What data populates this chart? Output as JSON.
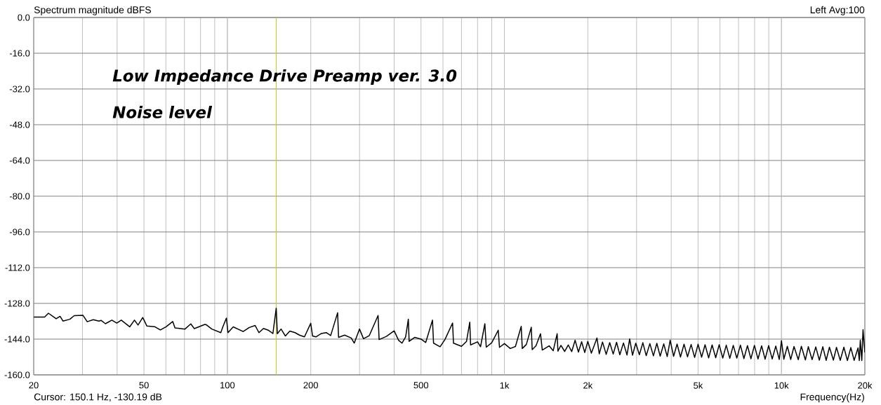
{
  "chart_data": {
    "type": "line",
    "title": "Low Impedance Drive Preamp ver. 3.0",
    "subtitle": "Noise level",
    "xlabel": "Frequency(Hz)",
    "ylabel": "Spectrum magnitude dBFS",
    "annotations": [
      "Left Avg:100",
      "Cursor: 150.1 Hz, -130.19 dB"
    ],
    "log": "x",
    "grid": true,
    "line_style": "solid",
    "xlim": [
      20,
      20000
    ],
    "ylim": [
      -160,
      0
    ],
    "xticks": [
      20,
      {
        "value": 30,
        "label": null
      },
      {
        "value": 40,
        "label": null
      },
      50,
      {
        "value": 60,
        "label": null
      },
      {
        "value": 70,
        "label": null
      },
      {
        "value": 80,
        "label": null
      },
      {
        "value": 90,
        "label": null
      },
      100,
      200,
      {
        "value": 300,
        "label": null
      },
      {
        "value": 400,
        "label": null
      },
      500,
      {
        "value": 600,
        "label": null
      },
      {
        "value": 700,
        "label": null
      },
      {
        "value": 800,
        "label": null
      },
      {
        "value": 900,
        "label": null
      },
      {
        "value": 1000,
        "label": "1k"
      },
      {
        "value": 2000,
        "label": "2k"
      },
      {
        "value": 3000,
        "label": null
      },
      {
        "value": 4000,
        "label": null
      },
      {
        "value": 5000,
        "label": "5k"
      },
      {
        "value": 6000,
        "label": null
      },
      {
        "value": 7000,
        "label": null
      },
      {
        "value": 8000,
        "label": null
      },
      {
        "value": 9000,
        "label": null
      },
      {
        "value": 10000,
        "label": "10k"
      },
      {
        "value": 20000,
        "label": "20k"
      }
    ],
    "yticks": [
      {
        "value": 0,
        "label": "0.0"
      },
      {
        "value": -16,
        "label": "-16.0"
      },
      {
        "value": -32,
        "label": "-32.0"
      },
      {
        "value": -48,
        "label": "-48.0"
      },
      {
        "value": -64,
        "label": "-64.0"
      },
      {
        "value": -80,
        "label": "-80.0"
      },
      {
        "value": -96,
        "label": "-96.0"
      },
      {
        "value": -112,
        "label": "-112.0"
      },
      {
        "value": -128,
        "label": "-128.0"
      },
      {
        "value": -144,
        "label": "-144.0"
      },
      {
        "value": -160,
        "label": "-160.0"
      }
    ],
    "ref_lines": [
      {
        "axis": "x",
        "value": 150.1,
        "color": "#c8c83c"
      }
    ],
    "x": [
      20,
      21.9,
      22.6,
      24.1,
      24.9,
      25.5,
      27,
      28,
      30.1,
      31.2,
      32.8,
      34.4,
      35,
      36.3,
      38.3,
      39.9,
      41.4,
      44.4,
      46.2,
      47.6,
      49.5,
      51.2,
      54.6,
      57.3,
      60.1,
      63.5,
      64.7,
      70.3,
      73.8,
      76,
      82.9,
      84,
      87.9,
      94.7,
      96.3,
      99.2,
      100.5,
      105,
      114,
      120,
      126,
      130,
      135,
      141,
      146,
      150.1,
      151.5,
      156.3,
      162,
      168,
      175.6,
      182,
      189.8,
      200,
      203,
      208.7,
      218,
      227.6,
      236,
      250,
      252,
      265,
      280,
      287,
      300,
      310,
      325,
      350,
      353,
      375,
      400,
      415,
      427,
      440,
      450,
      453,
      475,
      500,
      520,
      550,
      555,
      586,
      610,
      650,
      655,
      700,
      730,
      750,
      755,
      800,
      820,
      850,
      860,
      900,
      950,
      960,
      1000,
      1050,
      1096,
      1150,
      1160,
      1200,
      1250,
      1260,
      1300,
      1350,
      1370,
      1450,
      1500,
      1550,
      1560,
      1600,
      1650,
      1700,
      1750,
      1800,
      1850,
      1900,
      1950,
      2000,
      2060,
      2158,
      2200,
      2260,
      2330,
      2400,
      2470,
      2540,
      2610,
      2690,
      2770,
      2832,
      2900,
      2980,
      3070,
      3160,
      3250,
      3350,
      3450,
      3550,
      3650,
      3760,
      3870,
      3966,
      4080,
      4200,
      4320,
      4450,
      4580,
      4720,
      4860,
      5000,
      5150,
      5300,
      5460,
      5620,
      5790,
      5960,
      6140,
      6320,
      6510,
      6700,
      6900,
      7110,
      7320,
      7540,
      7760,
      7990,
      8230,
      8480,
      8730,
      8990,
      9260,
      9540,
      9820,
      10000,
      10200,
      10500,
      10800,
      11100,
      11500,
      11800,
      12200,
      12500,
      12900,
      13300,
      13700,
      14100,
      14500,
      14900,
      15400,
      15800,
      16300,
      16800,
      17300,
      17800,
      18300,
      18900,
      19100,
      19260,
      19500,
      19700,
      20000
    ],
    "series": [
      {
        "color": "#000000",
        "values": [
          -134.1,
          -134.1,
          -132.4,
          -134.9,
          -133.8,
          -135.9,
          -135.1,
          -133.5,
          -133.3,
          -136.2,
          -135.3,
          -135.9,
          -135.6,
          -137.1,
          -135.5,
          -136.8,
          -135.5,
          -138.5,
          -135.5,
          -137.7,
          -134.3,
          -138.1,
          -138.4,
          -139.9,
          -138.5,
          -136.1,
          -139,
          -139.5,
          -137.2,
          -139.3,
          -137.4,
          -137.6,
          -139.5,
          -141.1,
          -138.5,
          -134.6,
          -141.1,
          -138.5,
          -140.6,
          -138.8,
          -137.9,
          -141.1,
          -139.2,
          -140.1,
          -141.5,
          -130.19,
          -141.6,
          -139.5,
          -142.6,
          -140.4,
          -141.1,
          -142.2,
          -143,
          -136.9,
          -142.6,
          -143,
          -141.5,
          -141.1,
          -142.4,
          -132.2,
          -143.2,
          -142.2,
          -143.5,
          -145.8,
          -139.5,
          -143.8,
          -142.5,
          -133.4,
          -144.2,
          -142.8,
          -140.3,
          -144.5,
          -145.8,
          -143,
          -135.1,
          -145,
          -143.2,
          -144,
          -145.5,
          -135.5,
          -145.8,
          -147.4,
          -144.2,
          -136.8,
          -145.8,
          -147.2,
          -145,
          -136.4,
          -146.6,
          -145.2,
          -147.4,
          -137.1,
          -147.6,
          -145.6,
          -140,
          -147.7,
          -146,
          -148.2,
          -147.3,
          -138.3,
          -148.2,
          -146.4,
          -138.7,
          -148.7,
          -147,
          -141.6,
          -148.9,
          -147,
          -149.2,
          -141.6,
          -149.4,
          -146.8,
          -149.5,
          -146.6,
          -149.6,
          -144.5,
          -149.8,
          -145.2,
          -150,
          -145,
          -150.3,
          -143.5,
          -150.6,
          -145.3,
          -150.8,
          -145.6,
          -150.7,
          -145.4,
          -151,
          -145.7,
          -151.1,
          -143.9,
          -151.2,
          -145.8,
          -151,
          -145.6,
          -151.4,
          -146,
          -151.5,
          -145.9,
          -151.6,
          -146.1,
          -151.8,
          -144.5,
          -151.7,
          -146.2,
          -152,
          -146.3,
          -151.9,
          -146.4,
          -152.2,
          -146.3,
          -152.1,
          -146.5,
          -152.4,
          -146.6,
          -152.3,
          -146.5,
          -152.5,
          -146.7,
          -152.6,
          -146.8,
          -152.5,
          -146.7,
          -152.7,
          -146.9,
          -152.8,
          -146.8,
          -152.9,
          -147,
          -153,
          -146.9,
          -152.9,
          -147.1,
          -153.1,
          -144.7,
          -153,
          -147.2,
          -153.1,
          -147.3,
          -153.2,
          -147.2,
          -153.3,
          -147.4,
          -153.2,
          -147.5,
          -153.4,
          -147.4,
          -153.5,
          -147.6,
          -153.4,
          -147.7,
          -153.5,
          -147.6,
          -153.6,
          -147.8,
          -153.5,
          -147.9,
          -153.6,
          -144.5,
          -153.6,
          -139.8,
          -150
        ]
      }
    ]
  }
}
